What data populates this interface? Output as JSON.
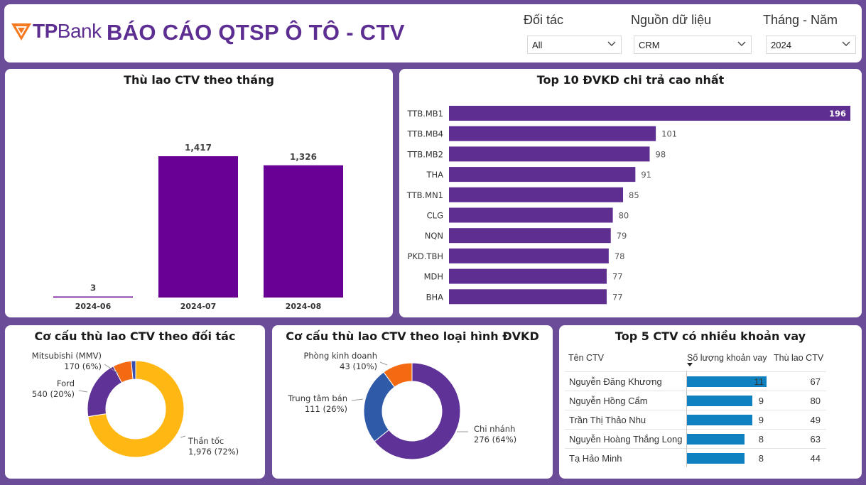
{
  "header": {
    "logo_bold": "TP",
    "logo_light": "Bank",
    "title": "BÁO CÁO QTSP Ô TÔ - CTV",
    "filters": [
      {
        "label": "Đối tác",
        "value": "All"
      },
      {
        "label": "Nguồn dữ liệu",
        "value": "CRM"
      },
      {
        "label": "Tháng - Năm",
        "value": "2024"
      }
    ]
  },
  "colors": {
    "brand": "#5d2e91",
    "bar_monthly": "#690096",
    "bar_top10": "#5e2e91",
    "donut_purple": "#5e3296",
    "donut_yellow": "#ffb714",
    "donut_orange": "#f46a12",
    "donut_blue": "#3a4eae",
    "donut_blue2": "#2f5aa8",
    "table_bar": "#0f80c0"
  },
  "monthly": {
    "title": "Thù lao CTV theo tháng",
    "chart_data": {
      "type": "bar",
      "categories": [
        "2024-06",
        "2024-07",
        "2024-08"
      ],
      "values": [
        3,
        1417,
        1326
      ],
      "value_labels": [
        "3",
        "1,417",
        "1,326"
      ],
      "ylim": [
        0,
        1417
      ]
    }
  },
  "top10": {
    "title": "Top 10 ĐVKD chi trả cao nhất",
    "chart_data": {
      "type": "bar",
      "orientation": "horizontal",
      "categories": [
        "TTB.MB1",
        "TTB.MB4",
        "TTB.MB2",
        "THA",
        "TTB.MN1",
        "CLG",
        "NQN",
        "PKD.TBH",
        "MDH",
        "BHA"
      ],
      "values": [
        196,
        101,
        98,
        91,
        85,
        80,
        79,
        78,
        77,
        77
      ]
    }
  },
  "donut_partner": {
    "title": "Cơ cấu thù lao CTV theo đối tác",
    "chart_data": {
      "type": "pie",
      "hole": true,
      "slices": [
        {
          "name": "Thần tốc",
          "value": 1976,
          "value_text": "1,976 (72%)",
          "color": "#ffb714"
        },
        {
          "name": "Ford",
          "value": 540,
          "value_text": "540 (20%)",
          "color": "#5e3296"
        },
        {
          "name": "Mitsubishi (MMV)",
          "value": 170,
          "value_text": "170 (6%)",
          "color": "#f46a12"
        },
        {
          "name": "",
          "value": 40,
          "value_text": "",
          "color": "#3a4eae"
        }
      ]
    }
  },
  "donut_type": {
    "title": "Cơ cấu thù lao CTV theo loại hình ĐVKD",
    "chart_data": {
      "type": "pie",
      "hole": true,
      "slices": [
        {
          "name": "Chi nhánh",
          "value": 276,
          "value_text": "276 (64%)",
          "color": "#5e3296"
        },
        {
          "name": "Trung tâm bán",
          "value": 111,
          "value_text": "111 (26%)",
          "color": "#2f5aa8"
        },
        {
          "name": "Phòng kinh doanh",
          "value": 43,
          "value_text": "43 (10%)",
          "color": "#f46a12"
        }
      ]
    }
  },
  "top5": {
    "title": "Top 5 CTV có nhiều khoản vay",
    "columns": [
      "Tên CTV",
      "Số lượng khoản vay",
      "Thù lao CTV"
    ],
    "rows": [
      {
        "name": "Nguyễn Đăng Khương",
        "loans": 11,
        "fee": 67
      },
      {
        "name": "Nguyễn Hồng Cẩm",
        "loans": 9,
        "fee": 80
      },
      {
        "name": "Trần Thị Thảo Nhu",
        "loans": 9,
        "fee": 49
      },
      {
        "name": "Nguyễn Hoàng Thắng Long",
        "loans": 8,
        "fee": 63
      },
      {
        "name": "Tạ Hảo Minh",
        "loans": 8,
        "fee": 44
      }
    ]
  }
}
